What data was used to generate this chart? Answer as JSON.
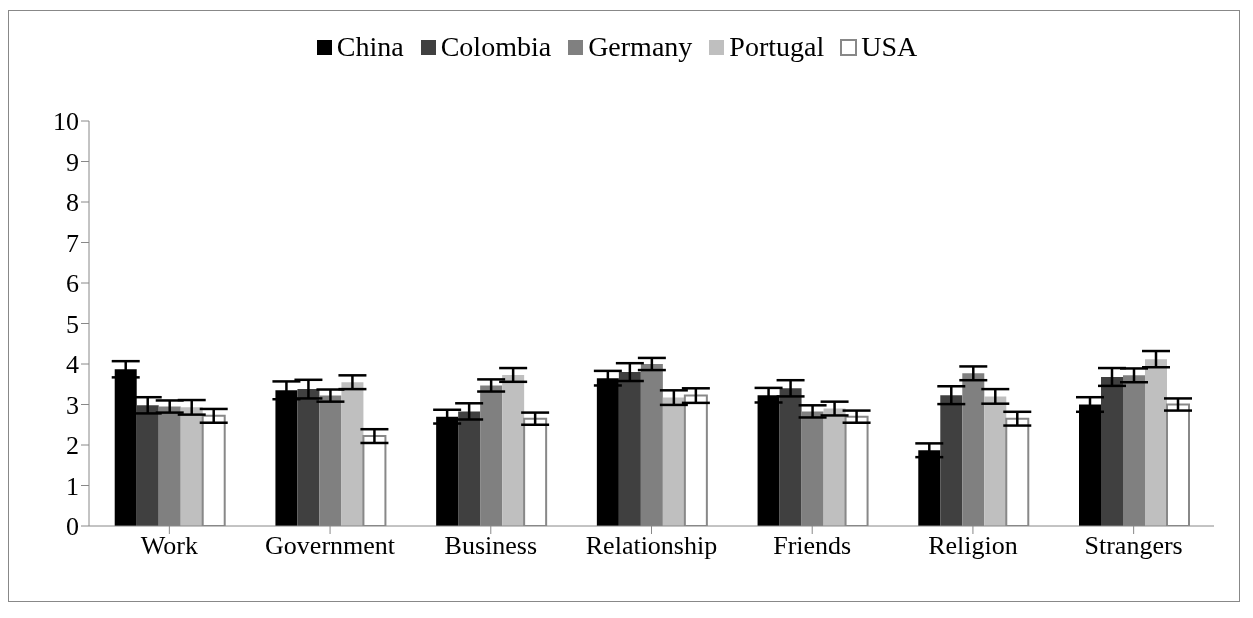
{
  "chart_data": {
    "type": "bar",
    "categories": [
      "Work",
      "Government",
      "Business",
      "Relationship",
      "Friends",
      "Religion",
      "Strangers"
    ],
    "series": [
      {
        "name": "China",
        "color": "#000000",
        "values": [
          3.87,
          3.35,
          2.7,
          3.65,
          3.23,
          1.87,
          3.0
        ],
        "errors": [
          0.2,
          0.22,
          0.17,
          0.18,
          0.18,
          0.17,
          0.18
        ]
      },
      {
        "name": "Colombia",
        "color": "#404040",
        "values": [
          2.98,
          3.38,
          2.83,
          3.8,
          3.4,
          3.23,
          3.68
        ],
        "errors": [
          0.2,
          0.23,
          0.2,
          0.22,
          0.2,
          0.22,
          0.22
        ]
      },
      {
        "name": "Germany",
        "color": "#808080",
        "values": [
          2.95,
          3.22,
          3.47,
          4.0,
          2.83,
          3.77,
          3.72
        ],
        "errors": [
          0.15,
          0.15,
          0.15,
          0.15,
          0.15,
          0.17,
          0.17
        ]
      },
      {
        "name": "Portugal",
        "color": "#bfbfbf",
        "values": [
          2.93,
          3.55,
          3.73,
          3.17,
          2.9,
          3.2,
          4.12
        ],
        "errors": [
          0.18,
          0.17,
          0.17,
          0.18,
          0.17,
          0.18,
          0.2
        ]
      },
      {
        "name": "USA",
        "color": "#ffffff",
        "values": [
          2.72,
          2.22,
          2.65,
          3.22,
          2.7,
          2.65,
          3.0
        ],
        "errors": [
          0.17,
          0.17,
          0.15,
          0.18,
          0.15,
          0.17,
          0.15
        ]
      }
    ],
    "ylim": [
      0,
      10
    ],
    "yticks": [
      0,
      1,
      2,
      3,
      4,
      5,
      6,
      7,
      8,
      9,
      10
    ],
    "grid": false,
    "legend": "top"
  }
}
